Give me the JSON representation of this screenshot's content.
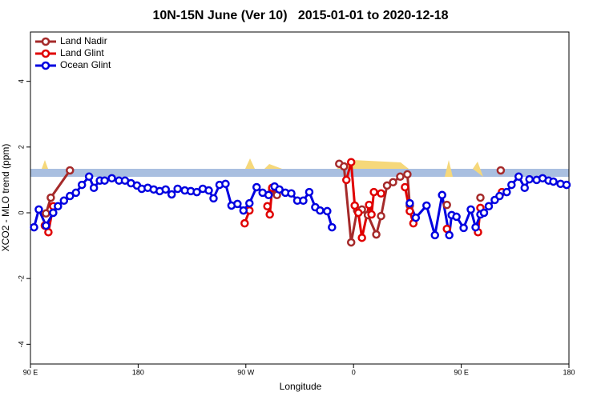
{
  "chart_data": {
    "type": "line",
    "title": "10N-15N June (Ver 10)   2015-01-01 to 2020-12-18",
    "x_label": "Longitude",
    "y_label": "XCO2 - MLO trend (ppm)",
    "xlim": [
      90,
      540
    ],
    "ylim": [
      -4.6,
      5.5
    ],
    "xticks": [
      {
        "value": 90,
        "label": "90 E"
      },
      180,
      {
        "value": 270,
        "label": "90 W"
      },
      {
        "value": 360,
        "label": "0"
      },
      {
        "value": 450,
        "label": "90 E"
      },
      {
        "value": 540,
        "label": "180"
      }
    ],
    "yticks": [
      -4,
      -2,
      0,
      2,
      4
    ],
    "legend": "top-left",
    "series": [
      {
        "name": "Land Nadir",
        "color": "#a52a2a",
        "x": [
          103,
          107,
          123,
          null,
          292,
          296,
          null,
          348,
          352,
          358,
          363,
          367,
          372,
          379,
          383,
          388,
          393,
          399,
          405,
          407,
          null,
          438,
          null,
          466,
          null,
          483
        ],
        "values": [
          -0.02,
          0.46,
          1.29,
          null,
          0.71,
          0.54,
          null,
          1.49,
          1.41,
          -0.9,
          0.07,
          0.1,
          -0.07,
          -0.66,
          -0.1,
          0.83,
          0.93,
          1.1,
          1.17,
          0.22,
          null,
          0.24,
          null,
          0.46,
          null,
          1.29
        ]
      },
      {
        "name": "Land Glint",
        "color": "#e00000",
        "x": [
          102,
          105,
          109,
          null,
          269,
          273,
          null,
          288,
          290,
          292,
          null,
          354,
          358,
          361,
          364,
          367,
          373,
          375,
          377,
          383,
          null,
          403,
          407,
          410,
          null,
          438,
          null,
          464,
          466,
          null,
          484
        ],
        "values": [
          -0.39,
          -0.59,
          0.2,
          null,
          -0.32,
          0.07,
          null,
          0.2,
          -0.05,
          0.76,
          null,
          1.0,
          1.54,
          0.22,
          0.0,
          -0.76,
          0.24,
          -0.05,
          0.63,
          0.59,
          null,
          0.78,
          0.05,
          -0.32,
          null,
          -0.49,
          null,
          -0.59,
          0.15,
          null,
          0.63
        ]
      },
      {
        "name": "Ocean Glint",
        "color": "#0000e0",
        "x": [
          93,
          97,
          103,
          109,
          113,
          118,
          123,
          128,
          133,
          139,
          143,
          148,
          152,
          158,
          164,
          169,
          174,
          179,
          183,
          188,
          193,
          198,
          203,
          208,
          213,
          219,
          224,
          229,
          234,
          239,
          243,
          248,
          253,
          258,
          263,
          268,
          273,
          279,
          284,
          289,
          294,
          298,
          303,
          308,
          313,
          318,
          323,
          328,
          332,
          338,
          342,
          null,
          407,
          412,
          421,
          428,
          434,
          440,
          442,
          446,
          452,
          458,
          462,
          466,
          469,
          473,
          478,
          482,
          488,
          492,
          498,
          503,
          507,
          513,
          518,
          523,
          527,
          533,
          538
        ],
        "values": [
          -0.44,
          0.1,
          -0.39,
          0,
          0.2,
          0.37,
          0.51,
          0.61,
          0.85,
          1.1,
          0.76,
          0.98,
          0.98,
          1.05,
          0.98,
          0.98,
          0.9,
          0.83,
          0.73,
          0.76,
          0.71,
          0.66,
          0.71,
          0.56,
          0.73,
          0.68,
          0.66,
          0.63,
          0.73,
          0.68,
          0.44,
          0.85,
          0.88,
          0.22,
          0.27,
          0.07,
          0.29,
          0.78,
          0.61,
          0.54,
          0.8,
          0.71,
          0.61,
          0.59,
          0.37,
          0.37,
          0.63,
          0.17,
          0.07,
          0.05,
          -0.44,
          null,
          0.29,
          -0.15,
          0.22,
          -0.68,
          0.54,
          -0.68,
          -0.07,
          -0.12,
          -0.46,
          0.1,
          -0.44,
          -0.05,
          0,
          0.2,
          0.39,
          0.51,
          0.63,
          0.85,
          1.1,
          0.76,
          1.02,
          1.0,
          1.05,
          0.98,
          0.95,
          0.88,
          0.85
        ]
      }
    ]
  }
}
